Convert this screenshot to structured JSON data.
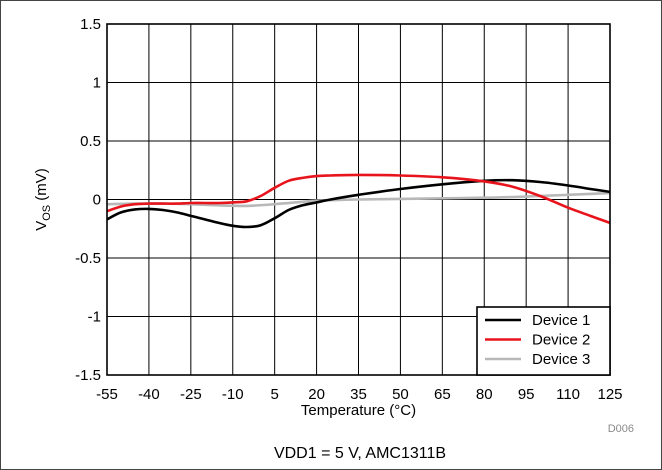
{
  "chart_data": {
    "type": "line",
    "xlabel": "Temperature (°C)",
    "ylabel_main": "V",
    "ylabel_sub": "OS",
    "ylabel_unit": " (mV)",
    "caption": "VDD1 = 5 V, AMC1311B",
    "figure_code": "D006",
    "xlim": [
      -55,
      125
    ],
    "ylim": [
      -1.5,
      1.5
    ],
    "grid": true,
    "legend_position": "bottom-right",
    "x_ticks": [
      -55,
      -40,
      -25,
      -10,
      5,
      20,
      35,
      50,
      65,
      80,
      95,
      110,
      125
    ],
    "x_tick_labels": [
      "-55",
      "-40",
      "-25",
      "-10",
      "5",
      "20",
      "35",
      "50",
      "65",
      "80",
      "95",
      "110",
      "125"
    ],
    "y_ticks": [
      -1.5,
      -1,
      -0.5,
      0,
      0.5,
      1,
      1.5
    ],
    "y_tick_labels": [
      "-1.5",
      "-1",
      "-0.5",
      "0",
      "0.5",
      "1",
      "1.5"
    ],
    "series": [
      {
        "name": "Device 1",
        "color": "#000000",
        "x": [
          -55,
          -50,
          -45,
          -40,
          -35,
          -30,
          -25,
          -20,
          -15,
          -10,
          -5,
          0,
          5,
          10,
          15,
          20,
          25,
          35,
          50,
          65,
          80,
          90,
          100,
          110,
          118,
          125
        ],
        "y": [
          -0.17,
          -0.11,
          -0.085,
          -0.08,
          -0.09,
          -0.11,
          -0.14,
          -0.17,
          -0.2,
          -0.225,
          -0.235,
          -0.22,
          -0.16,
          -0.09,
          -0.05,
          -0.025,
          0.0,
          0.04,
          0.09,
          0.13,
          0.16,
          0.165,
          0.15,
          0.12,
          0.09,
          0.065
        ]
      },
      {
        "name": "Device 2",
        "color": "#e8141c",
        "x": [
          -55,
          -50,
          -45,
          -40,
          -35,
          -30,
          -25,
          -20,
          -15,
          -10,
          -5,
          0,
          5,
          10,
          15,
          20,
          25,
          35,
          50,
          65,
          80,
          90,
          100,
          110,
          118,
          125
        ],
        "y": [
          -0.1,
          -0.06,
          -0.04,
          -0.035,
          -0.035,
          -0.035,
          -0.03,
          -0.03,
          -0.03,
          -0.025,
          -0.015,
          0.03,
          0.1,
          0.16,
          0.185,
          0.2,
          0.205,
          0.21,
          0.205,
          0.19,
          0.155,
          0.11,
          0.03,
          -0.07,
          -0.14,
          -0.2
        ]
      },
      {
        "name": "Device 3",
        "color": "#b8b8b8",
        "x": [
          -55,
          -45,
          -35,
          -25,
          -15,
          -5,
          5,
          15,
          20,
          35,
          50,
          65,
          80,
          95,
          110,
          125
        ],
        "y": [
          -0.04,
          -0.035,
          -0.035,
          -0.04,
          -0.05,
          -0.055,
          -0.04,
          -0.02,
          -0.01,
          0.0,
          0.005,
          0.01,
          0.015,
          0.025,
          0.04,
          0.055
        ]
      }
    ]
  }
}
